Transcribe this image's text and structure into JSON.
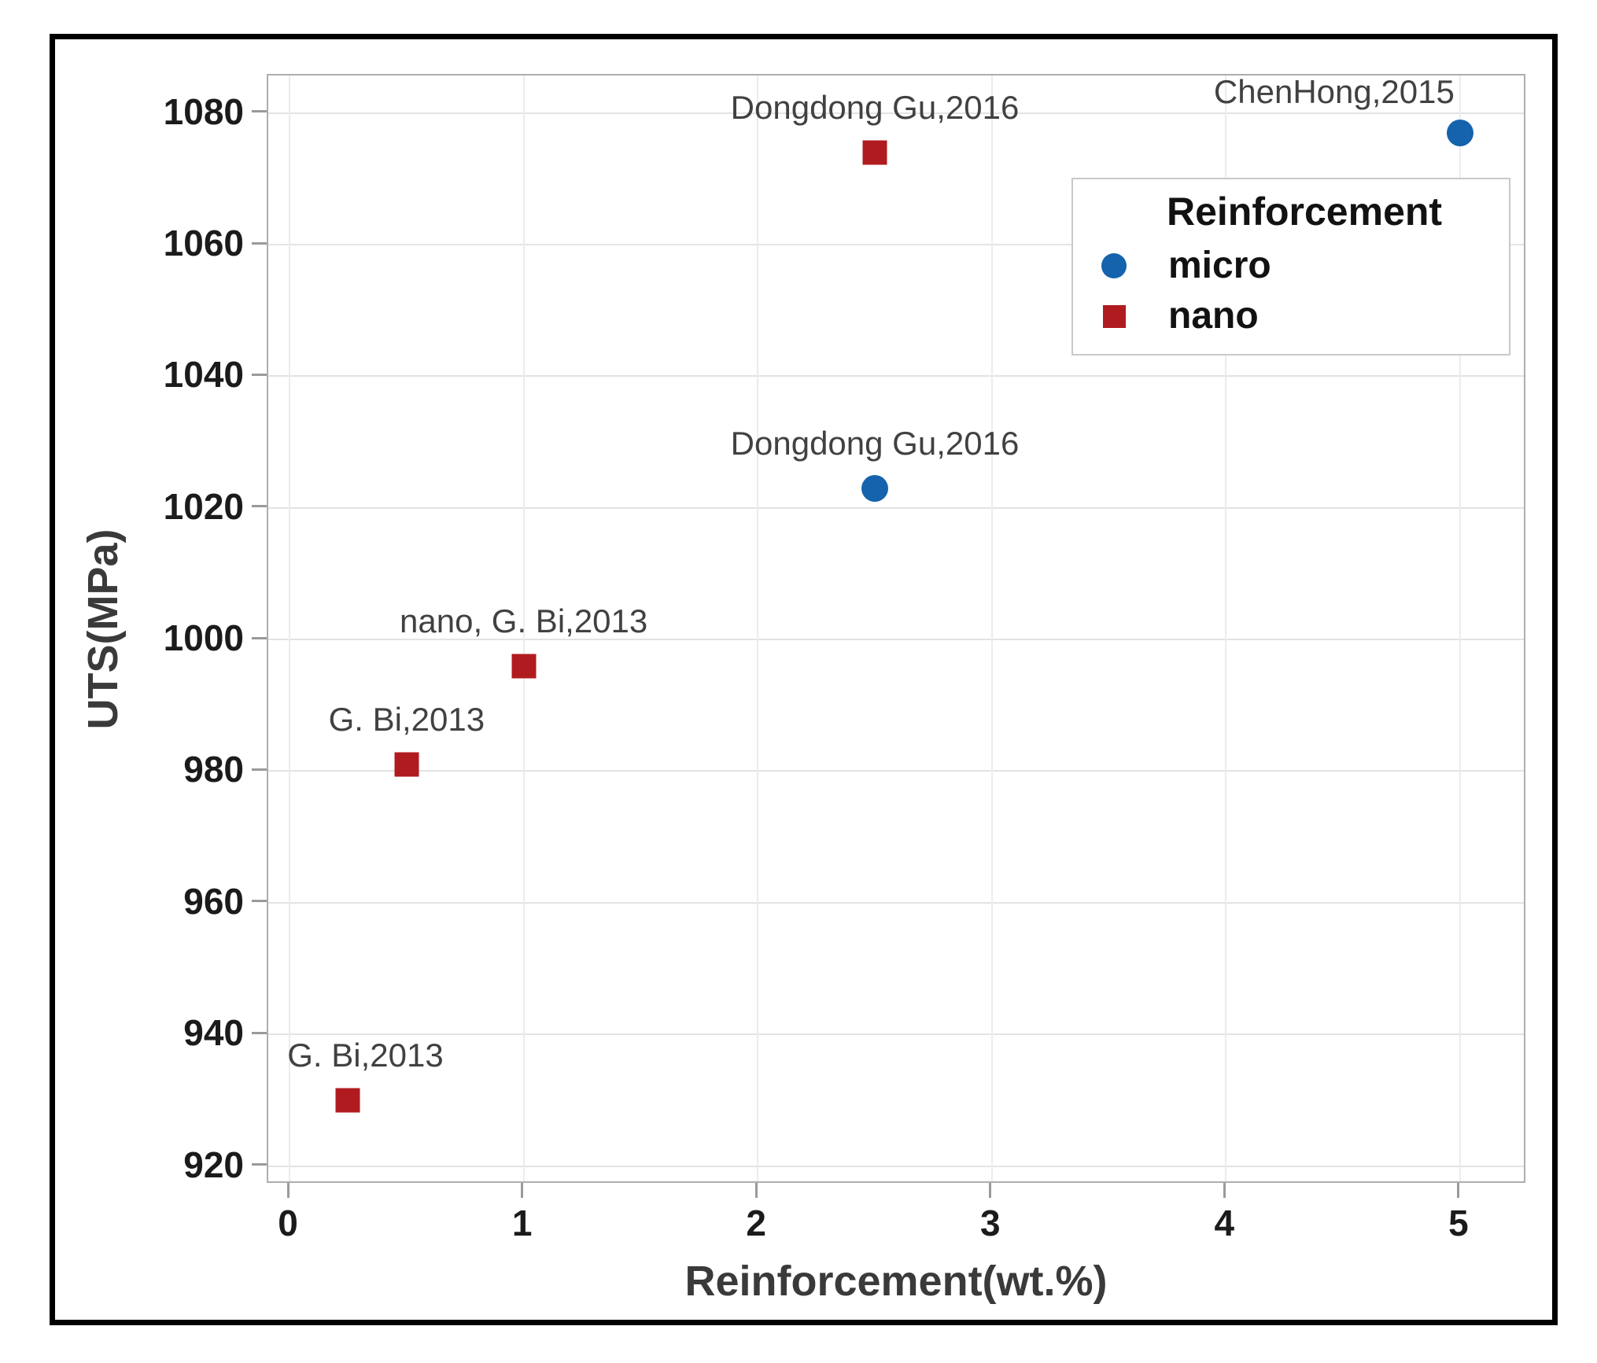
{
  "chart_data": {
    "type": "scatter",
    "title": "",
    "xlabel": "Reinforcement(wt.%)",
    "ylabel": "UTS(MPa)",
    "xlim": [
      -0.091,
      5.286
    ],
    "ylim": [
      917.2,
      1085.7
    ],
    "xticks": [
      0,
      1,
      2,
      3,
      4,
      5
    ],
    "yticks": [
      920,
      940,
      960,
      980,
      1000,
      1020,
      1040,
      1060,
      1080
    ],
    "grid": true,
    "colors": {
      "micro": "#1463AC",
      "nano": "#B01B20"
    },
    "legend": {
      "title": "Reinforcement",
      "position": "upper-right",
      "entries": [
        {
          "label": "micro",
          "marker": "circle",
          "color": "#1463AC"
        },
        {
          "label": "nano",
          "marker": "square",
          "color": "#B01B20"
        }
      ]
    },
    "series": [
      {
        "name": "micro",
        "marker": "circle",
        "color": "#1463AC",
        "points": [
          {
            "x": 2.5,
            "y": 1023,
            "label": "Dongdong Gu,2016"
          },
          {
            "x": 5.0,
            "y": 1077,
            "label": "ChenHong,2015",
            "label_dx": -160,
            "label_dy": -52
          }
        ]
      },
      {
        "name": "nano",
        "marker": "square",
        "color": "#B01B20",
        "points": [
          {
            "x": 0.25,
            "y": 930,
            "label": "G. Bi,2013",
            "label_dx": 22
          },
          {
            "x": 0.5,
            "y": 981,
            "label": "G. Bi,2013"
          },
          {
            "x": 1.0,
            "y": 996,
            "label": "nano, G. Bi,2013"
          },
          {
            "x": 2.5,
            "y": 1074,
            "label": "Dongdong Gu,2016"
          }
        ]
      }
    ]
  }
}
